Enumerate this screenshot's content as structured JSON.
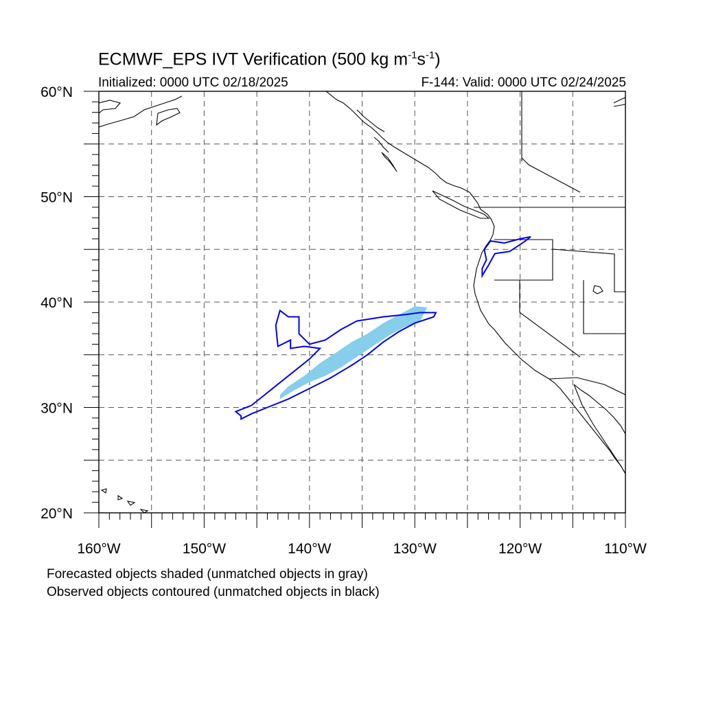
{
  "title": {
    "main": "ECMWF_EPS IVT Verification (500 kg m",
    "sup1": "-1",
    "mid": "s",
    "sup2": "-1",
    "end": ")"
  },
  "subtitle_left": "Initialized: 0000 UTC 02/18/2025",
  "subtitle_right": "F-144: Valid: 0000 UTC 02/24/2025",
  "lat_labels": [
    "60°N",
    "50°N",
    "40°N",
    "30°N",
    "20°N"
  ],
  "lon_labels": [
    "160°W",
    "150°W",
    "140°W",
    "130°W",
    "120°W",
    "110°W"
  ],
  "notes": [
    "Forecasted objects shaded (unmatched objects in gray)",
    "Observed objects contoured (unmatched objects in black)"
  ],
  "map_extent": {
    "lon": [
      -160,
      -110
    ],
    "lat": [
      20,
      60
    ]
  },
  "colors": {
    "forecast_fill": "#87ceeb",
    "observed_contour": "#0000ee",
    "coastline": "#000000",
    "grid": "#555555"
  },
  "forecast_object": {
    "outline_lonlat": [
      [
        -142.8,
        30.8
      ],
      [
        -141.5,
        31.6
      ],
      [
        -140.0,
        32.4
      ],
      [
        -138.5,
        33.0
      ],
      [
        -137.0,
        33.8
      ],
      [
        -135.5,
        34.8
      ],
      [
        -134.0,
        35.8
      ],
      [
        -132.5,
        36.8
      ],
      [
        -131.0,
        37.6
      ],
      [
        -129.5,
        38.2
      ],
      [
        -128.8,
        39.5
      ],
      [
        -130.0,
        39.6
      ],
      [
        -131.5,
        38.8
      ],
      [
        -133.0,
        38.0
      ],
      [
        -134.5,
        37.0
      ],
      [
        -136.0,
        36.2
      ],
      [
        -137.5,
        35.2
      ],
      [
        -139.0,
        34.2
      ],
      [
        -140.5,
        33.0
      ],
      [
        -142.0,
        32.0
      ],
      [
        -142.8,
        31.2
      ]
    ]
  },
  "observed_objects": [
    {
      "outline_lonlat": [
        [
          -147.0,
          29.6
        ],
        [
          -145.5,
          30.2
        ],
        [
          -144.5,
          31.0
        ],
        [
          -143.0,
          32.2
        ],
        [
          -141.5,
          33.4
        ],
        [
          -140.0,
          34.6
        ],
        [
          -139.0,
          35.6
        ],
        [
          -140.5,
          35.8
        ],
        [
          -141.8,
          35.6
        ],
        [
          -141.8,
          36.4
        ],
        [
          -143.0,
          35.8
        ],
        [
          -143.2,
          37.8
        ],
        [
          -142.8,
          39.2
        ],
        [
          -142.0,
          38.6
        ],
        [
          -141.0,
          38.6
        ],
        [
          -141.0,
          37.0
        ],
        [
          -140.0,
          36.0
        ],
        [
          -138.5,
          36.4
        ],
        [
          -137.0,
          37.4
        ],
        [
          -135.5,
          38.2
        ],
        [
          -133.0,
          38.6
        ],
        [
          -131.0,
          38.8
        ],
        [
          -129.5,
          39.0
        ],
        [
          -128.0,
          39.0
        ],
        [
          -128.2,
          38.6
        ],
        [
          -130.0,
          38.0
        ],
        [
          -131.5,
          37.2
        ],
        [
          -133.0,
          36.2
        ],
        [
          -134.5,
          35.0
        ],
        [
          -136.0,
          34.0
        ],
        [
          -138.0,
          32.8
        ],
        [
          -140.0,
          31.8
        ],
        [
          -142.0,
          30.8
        ],
        [
          -144.0,
          30.0
        ],
        [
          -145.5,
          29.4
        ],
        [
          -146.5,
          28.9
        ],
        [
          -146.5,
          29.2
        ]
      ]
    },
    {
      "outline_lonlat": [
        [
          -123.6,
          42.5
        ],
        [
          -123.0,
          43.5
        ],
        [
          -122.4,
          44.6
        ],
        [
          -121.0,
          44.8
        ],
        [
          -119.5,
          45.8
        ],
        [
          -119.0,
          46.2
        ],
        [
          -120.0,
          46.0
        ],
        [
          -121.5,
          45.6
        ],
        [
          -122.8,
          45.8
        ],
        [
          -123.4,
          45.0
        ],
        [
          -123.2,
          44.0
        ],
        [
          -123.6,
          43.2
        ]
      ]
    }
  ]
}
